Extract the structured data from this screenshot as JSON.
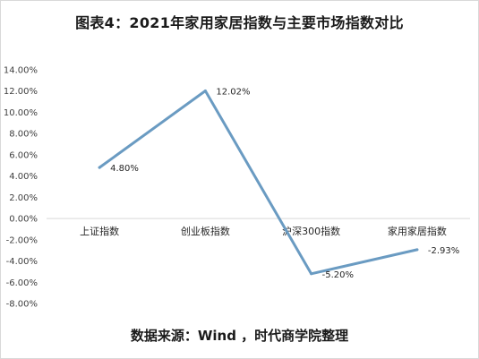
{
  "chart_data": {
    "type": "line",
    "title": "图表4：2021年家用家居指数与主要市场指数对比",
    "source": "数据来源：Wind ，时代商学院整理",
    "categories": [
      "上证指数",
      "创业板指数",
      "沪深300指数",
      "家用家居指数"
    ],
    "values": [
      4.8,
      12.02,
      -5.2,
      -2.93
    ],
    "data_labels": [
      "4.80%",
      "12.02%",
      "-5.20%",
      "-2.93%"
    ],
    "y_ticks": [
      "14.00%",
      "12.00%",
      "10.00%",
      "8.00%",
      "6.00%",
      "4.00%",
      "2.00%",
      "0.00%",
      "-2.00%",
      "-4.00%",
      "-6.00%",
      "-8.00%"
    ],
    "ylim": [
      -8,
      14
    ],
    "ytick_step": 2,
    "grid": false,
    "legend": "none",
    "line_color": "#6a9bc2"
  }
}
